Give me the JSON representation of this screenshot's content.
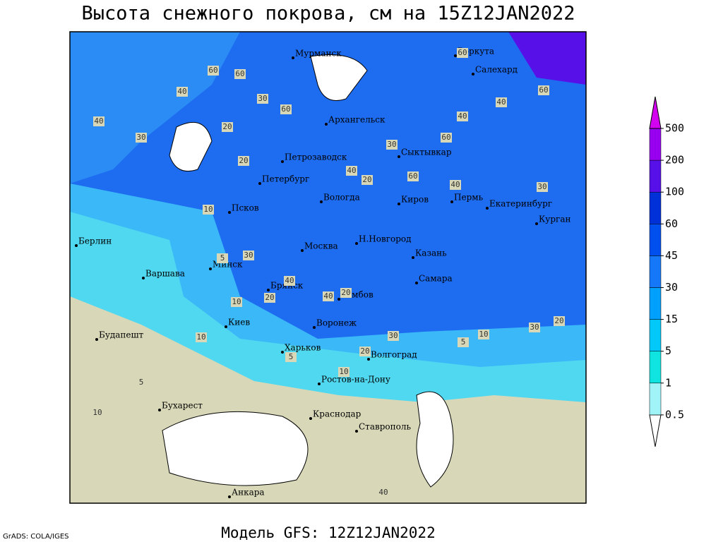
{
  "title": "Высота снежного покрова, см на 15Z12JAN2022",
  "footer": "Модель GFS: 12Z12JAN2022",
  "credit": "GrADS: COLA/IGES",
  "legend": {
    "levels": [
      0.5,
      1,
      5,
      15,
      30,
      45,
      60,
      100,
      200,
      500
    ],
    "colors": [
      "#ffffff",
      "#a0f4f8",
      "#10e4e0",
      "#00c8f8",
      "#00a0ff",
      "#1478f8",
      "#0050f0",
      "#0030d8",
      "#5810e8",
      "#9800f0",
      "#d400f0"
    ]
  },
  "cities": [
    "Мурманск",
    "Воркута",
    "Салехард",
    "Архангельск",
    "Петрозаводск",
    "Сыктывкар",
    "Петербург",
    "Вологда",
    "Киров",
    "Пермь",
    "Екатеринбург",
    "Курган",
    "Псков",
    "Берлин",
    "Н.Новгород",
    "Казань",
    "Москва",
    "Минск",
    "Варшава",
    "Самара",
    "Брянск",
    "Тамбов",
    "Киев",
    "Воронеж",
    "Будапешт",
    "Харьков",
    "Волгоград",
    "Ростов-на-Дону",
    "Бухарест",
    "Краснодар",
    "Ставрополь",
    "Анкара"
  ],
  "contour_labels": [
    "60",
    "60",
    "40",
    "30",
    "60",
    "40",
    "20",
    "30",
    "20",
    "60",
    "40",
    "60",
    "40",
    "30",
    "40",
    "20",
    "60",
    "60",
    "40",
    "30",
    "10",
    "5",
    "30",
    "10",
    "20",
    "40",
    "40",
    "20",
    "10",
    "5",
    "10",
    "30",
    "30",
    "10",
    "5",
    "20",
    "10",
    "20",
    "5",
    "40"
  ]
}
